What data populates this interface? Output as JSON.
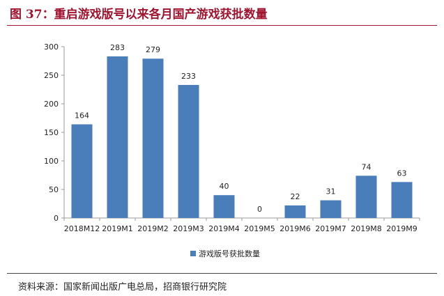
{
  "header": {
    "title": "图 37：重启游戏版号以来各月国产游戏获批数量"
  },
  "chart_data": {
    "type": "bar",
    "categories": [
      "2018M12",
      "2019M1",
      "2019M2",
      "2019M3",
      "2019M4",
      "2019M5",
      "2019M6",
      "2019M7",
      "2019M8",
      "2019M9"
    ],
    "series": [
      {
        "name": "游戏版号获批数量",
        "values": [
          164,
          283,
          279,
          233,
          40,
          0,
          22,
          31,
          74,
          63
        ]
      }
    ],
    "ylim": [
      0,
      300
    ],
    "yticks": [
      0,
      50,
      100,
      150,
      200,
      250,
      300
    ],
    "grid": false,
    "legend_position": "bottom",
    "bar_color": "#4a7ebb"
  },
  "footer": {
    "source": "资料来源：国家新闻出版广电总局，招商银行研究院"
  }
}
